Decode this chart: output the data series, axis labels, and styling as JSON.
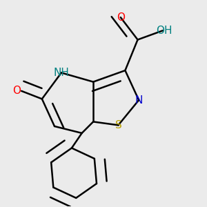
{
  "bg_color": "#ebebeb",
  "atom_colors": {
    "N": "#0000cc",
    "NH": "#008080",
    "S": "#b8a000",
    "O_red": "#ff0000",
    "OH": "#008080"
  },
  "bond_color": "#000000",
  "bond_width": 1.8,
  "font_size": 11
}
